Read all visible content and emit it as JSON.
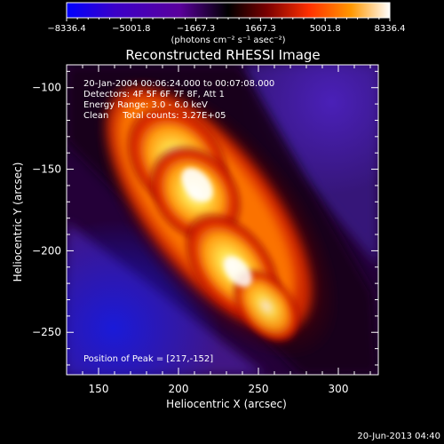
{
  "chart_data": {
    "type": "heatmap",
    "title": "Reconstructed RHESSI Image",
    "xlabel": "Heliocentric X (arcsec)",
    "ylabel": "Heliocentric Y (arcsec)",
    "xlim": [
      130,
      325
    ],
    "ylim": [
      -276,
      -86
    ],
    "x_ticks": [
      150,
      200,
      250,
      300
    ],
    "y_ticks": [
      -100,
      -150,
      -200,
      -250
    ],
    "colorbar": {
      "min": -8336.4,
      "max": 8336.4,
      "tick_values": [
        -8336.4,
        -5001.8,
        -1667.3,
        1667.3,
        5001.8,
        8336.4
      ],
      "tick_labels": [
        "−8336.4",
        "−5001.8",
        "−1667.3",
        "1667.3",
        "5001.8",
        "8336.4"
      ],
      "unit_label": "(photons cm⁻² s⁻¹ asec⁻²)",
      "colors": [
        "#0000ff",
        "#3b00c8",
        "#5a009c",
        "#000000",
        "#7a0000",
        "#ff3000",
        "#ff9800",
        "#ffffff"
      ]
    },
    "annotations": [
      "20-Jan-2004 00:06:24.000 to 00:07:08.000",
      "Detectors: 4F 5F 6F 7F 8F, Att 1",
      "Energy Range: 3.0 - 6.0 keV",
      "Clean     Total counts: 3.27E+05"
    ],
    "peak_label": "Position of Peak = [217,-152]",
    "peak_position": [
      217,
      -152
    ],
    "grid": false
  },
  "footer": {
    "timestamp": "20-Jun-2013 04:40"
  }
}
